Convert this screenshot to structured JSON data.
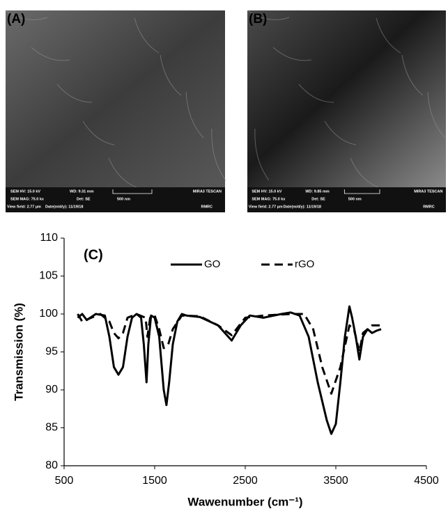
{
  "panels": [
    {
      "label": "(A)",
      "info": {
        "hv": "SEM HV: 15.0 kV",
        "wd": "WD: 9.31 mm",
        "brand": "MIRA3 TESCAN",
        "mag": "SEM MAG: 75.0 kx",
        "det": "Det: SE",
        "scale": "500 nm",
        "field": "View field: 2.77 µm",
        "date": "Date(m/d/y): 11/19/18",
        "lab": "RMRC"
      }
    },
    {
      "label": "(B)",
      "info": {
        "hv": "SEM HV: 15.0 kV",
        "wd": "WD: 9.85 mm",
        "brand": "MIRA3 TESCAN",
        "mag": "SEM MAG: 75.0 kx",
        "det": "Det: SE",
        "scale": "500 nm",
        "field": "View field: 2.77 µm",
        "date": "Date(m/d/y): 11/19/18",
        "lab": "RMRC"
      }
    }
  ],
  "chart_data": {
    "type": "line",
    "label": "(C)",
    "ylabel": "Transmission (%)",
    "xlabel": "Wawenumber (cm⁻¹)",
    "xlim": [
      500,
      4500
    ],
    "xticks": [
      500,
      1500,
      2500,
      3500,
      4500
    ],
    "ylim": [
      80,
      110
    ],
    "yticks": [
      80,
      85,
      90,
      95,
      100,
      105,
      110
    ],
    "series": [
      {
        "name": "GO",
        "color": "#000000",
        "dash": false,
        "x": [
          650,
          700,
          750,
          850,
          950,
          1000,
          1050,
          1100,
          1150,
          1200,
          1250,
          1300,
          1350,
          1380,
          1410,
          1430,
          1460,
          1500,
          1550,
          1600,
          1630,
          1660,
          1700,
          1750,
          1800,
          1850,
          2000,
          2200,
          2350,
          2450,
          2550,
          2700,
          2900,
          3000,
          3100,
          3200,
          3300,
          3400,
          3450,
          3500,
          3550,
          3600,
          3650,
          3680,
          3720,
          3760,
          3800,
          3850,
          3900,
          3950,
          4000
        ],
        "values": [
          99.5,
          100,
          99.2,
          100,
          99.8,
          97,
          93,
          92,
          93,
          97,
          99.5,
          100,
          99.5,
          96,
          91,
          96,
          99.8,
          99.5,
          97,
          90,
          88,
          91,
          96,
          99,
          100,
          99.8,
          99.6,
          98.5,
          96.5,
          98.5,
          99.8,
          99.5,
          100,
          100.2,
          99.8,
          97,
          91,
          86,
          84.2,
          85.5,
          91,
          97,
          101,
          99.5,
          97,
          94,
          97,
          98,
          97.5,
          97.8,
          98
        ]
      },
      {
        "name": "rGO",
        "color": "#000000",
        "dash": true,
        "x": [
          650,
          700,
          800,
          900,
          1000,
          1050,
          1100,
          1150,
          1200,
          1300,
          1400,
          1420,
          1450,
          1500,
          1550,
          1600,
          1650,
          1700,
          1800,
          2000,
          2200,
          2350,
          2500,
          2700,
          3000,
          3150,
          3250,
          3350,
          3450,
          3550,
          3650,
          3700,
          3760,
          3800,
          3900,
          4000
        ],
        "values": [
          100,
          99,
          99.5,
          100,
          99,
          97.5,
          96.8,
          97.5,
          99.5,
          100,
          99.5,
          97,
          99.5,
          99.8,
          98,
          95.5,
          96,
          98,
          99.8,
          99.7,
          98.5,
          97.2,
          99.5,
          99.8,
          100,
          100,
          98,
          93,
          89.5,
          93,
          98.5,
          98,
          95,
          97.5,
          98.5,
          98.5
        ]
      }
    ]
  }
}
